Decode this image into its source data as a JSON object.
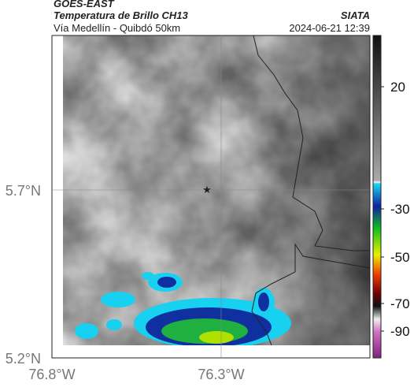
{
  "header": {
    "satellite": "GOES-EAST",
    "product": "Temperatura de Brillo CH13",
    "source": "SIATA",
    "region": "Vía Medellín - Quibdó 50km",
    "datetime": "2024-06-21 12:39"
  },
  "map": {
    "lat_labels": [
      "5.7°N",
      "5.2°N"
    ],
    "lon_labels": [
      "76.8°W",
      "76.3°W"
    ]
  },
  "colorbar": {
    "ticks": [
      20,
      -30,
      -50,
      -70,
      -90
    ]
  }
}
